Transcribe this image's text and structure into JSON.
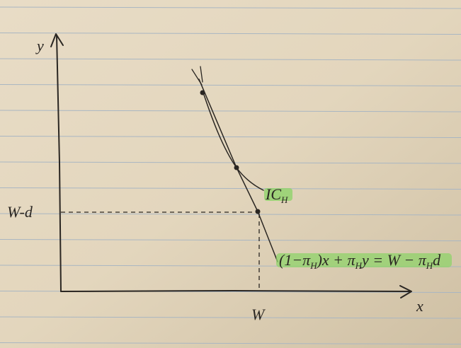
{
  "axes": {
    "y_label": "y",
    "x_label": "x"
  },
  "labels": {
    "w_minus_d": "W-d",
    "w": "W"
  },
  "curve_label": [
    {
      "text": "IC"
    },
    {
      "text": "H",
      "sub": true
    }
  ],
  "equation": [
    {
      "text": "(1−π"
    },
    {
      "text": "H",
      "sub": true
    },
    {
      "text": ")x + π"
    },
    {
      "text": "H",
      "sub": true
    },
    {
      "text": "y = W − π"
    },
    {
      "text": "H",
      "sub": true
    },
    {
      "text": "d"
    }
  ]
}
